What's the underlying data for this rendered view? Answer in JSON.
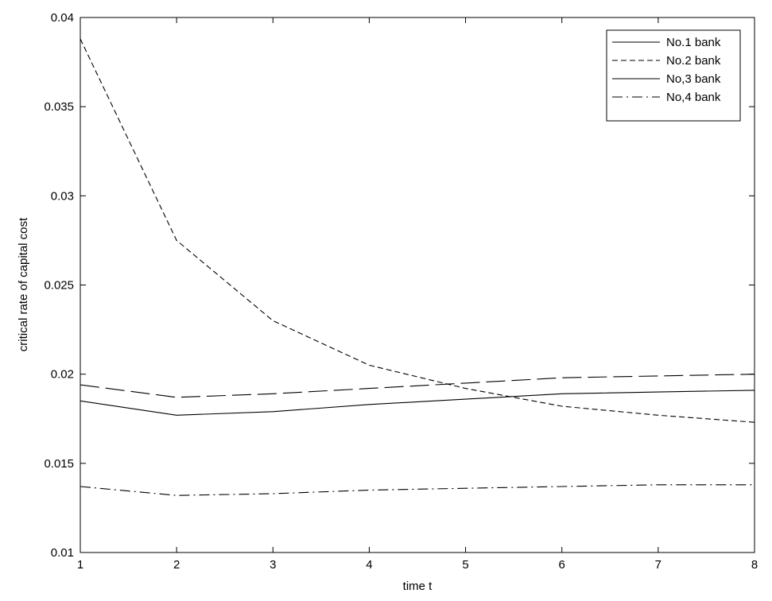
{
  "chart_data": {
    "type": "line",
    "xlabel": "time t",
    "ylabel": "critical rate of capital cost",
    "xlim": [
      1,
      8
    ],
    "ylim": [
      0.01,
      0.04
    ],
    "x_ticks": [
      1,
      2,
      3,
      4,
      5,
      6,
      7,
      8
    ],
    "x_tick_labels": [
      "1",
      "2",
      "3",
      "4",
      "5",
      "6",
      "7",
      "8"
    ],
    "y_ticks": [
      0.01,
      0.015,
      0.02,
      0.025,
      0.03,
      0.035,
      0.04
    ],
    "y_tick_labels": [
      "0.01",
      "0.015",
      "0.02",
      "0.025",
      "0.03",
      "0.035",
      "0.04"
    ],
    "grid": false,
    "legend_position": "top-right",
    "x": [
      1,
      2,
      3,
      4,
      5,
      6,
      7,
      8
    ],
    "series": [
      {
        "name": "No.1 bank",
        "line_style": "solid",
        "color": "#000000",
        "values": [
          0.0185,
          0.0177,
          0.0179,
          0.0183,
          0.0186,
          0.0189,
          0.019,
          0.0191
        ]
      },
      {
        "name": "No.2 bank",
        "line_style": "dashed",
        "color": "#000000",
        "values": [
          0.0388,
          0.0275,
          0.023,
          0.0205,
          0.0192,
          0.0182,
          0.0177,
          0.0173
        ]
      },
      {
        "name": "No,3 bank",
        "line_style": "solid",
        "color": "#000000",
        "values": [
          null,
          null,
          null,
          null,
          null,
          null,
          null,
          null
        ]
      },
      {
        "name": "No,4 bank",
        "line_style": "dash-dot",
        "color": "#000000",
        "values": [
          0.0137,
          0.0132,
          0.0133,
          0.0135,
          0.0136,
          0.0137,
          0.0138,
          0.0138
        ]
      },
      {
        "name": "",
        "line_style": "long-dash",
        "color": "#000000",
        "values": [
          0.0194,
          0.0187,
          0.0189,
          0.0192,
          0.0195,
          0.0198,
          0.0199,
          0.02
        ]
      }
    ]
  }
}
